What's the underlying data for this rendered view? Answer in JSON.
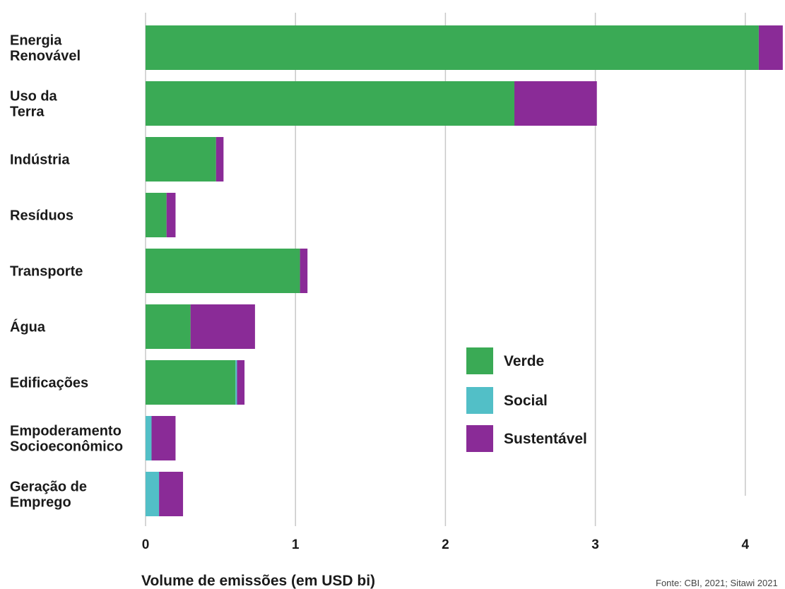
{
  "chart_data": {
    "type": "bar",
    "orientation": "horizontal",
    "stacked": true,
    "categories": [
      "Energia Renovável",
      "Uso da Terra",
      "Indústria",
      "Resíduos",
      "Transporte",
      "Água",
      "Edificações",
      "Empoderamento Socioeconômico",
      "Geração de Emprego"
    ],
    "category_lines": [
      [
        "Energia",
        "Renovável"
      ],
      [
        "Uso da",
        "Terra"
      ],
      [
        "Indústria"
      ],
      [
        "Resíduos"
      ],
      [
        "Transporte"
      ],
      [
        "Água"
      ],
      [
        "Edificações"
      ],
      [
        "Empoderamento",
        "Socioeconômico"
      ],
      [
        "Geração de",
        "Emprego"
      ]
    ],
    "series": [
      {
        "name": "Verde",
        "color": "#3aaa55",
        "values": [
          4.09,
          2.46,
          0.47,
          0.14,
          1.03,
          0.3,
          0.6,
          0.0,
          0.0
        ]
      },
      {
        "name": "Social",
        "color": "#52bfc7",
        "values": [
          0.0,
          0.0,
          0.0,
          0.0,
          0.0,
          0.0,
          0.01,
          0.04,
          0.09
        ]
      },
      {
        "name": "Sustentável",
        "color": "#8a2b97",
        "values": [
          0.16,
          0.55,
          0.05,
          0.06,
          0.05,
          0.43,
          0.05,
          0.16,
          0.16
        ]
      }
    ],
    "xticks": [
      0,
      1,
      2,
      3,
      4
    ],
    "xlim": [
      0,
      4.26
    ],
    "xlabel": "Volume de emissões (em USD bi)",
    "source": "Fonte: CBI, 2021; Sitawi 2021",
    "grid": "vertical",
    "legend_position": "inside-right"
  }
}
